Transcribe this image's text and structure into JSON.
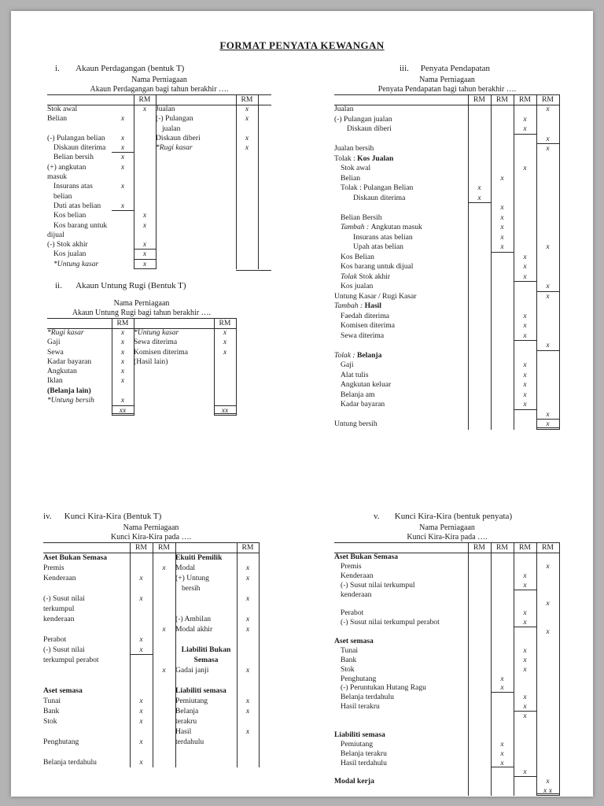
{
  "title": "FORMAT PENYATA KEWANGAN",
  "theme": {
    "backdrop": "#b3b3b3",
    "paper": "#ffffff",
    "ink": "#1c1c1c",
    "rule": "#2a2a2a"
  },
  "sections": {
    "s1": {
      "num": "i.",
      "heading": "Akaun Perdagangan (bentuk T)",
      "name": "Nama Perniagaan",
      "subtitle": "Akaun Perdagangan bagi tahun berakhir ….",
      "rm": "RM",
      "left": {
        "rows": [
          {
            "l": "Stok awal",
            "c": [
              "",
              "x"
            ]
          },
          {
            "l": "Belian",
            "c": [
              "x",
              ""
            ]
          },
          {
            "l": ""
          },
          {
            "l": "(-) Pulangan belian",
            "c": [
              "x",
              ""
            ]
          },
          {
            "l": "Diskaun diterima",
            "in": 1,
            "c": [
              "x",
              ""
            ],
            "u": [
              0
            ]
          },
          {
            "l": "Belian bersih",
            "in": 1,
            "c": [
              "x",
              ""
            ]
          },
          {
            "l": "(+) angkutan",
            "c": [
              "x",
              ""
            ]
          },
          {
            "l": "masuk"
          },
          {
            "l": "Insurans atas",
            "in": 1,
            "c": [
              "x",
              ""
            ]
          },
          {
            "l": "belian",
            "in": 1
          },
          {
            "l": "Duti atas belian",
            "in": 1,
            "c": [
              "x",
              ""
            ],
            "u": [
              0
            ]
          },
          {
            "l": "Kos belian",
            "in": 1,
            "c": [
              "",
              "x"
            ]
          },
          {
            "l": "Kos barang untuk",
            "in": 1,
            "c": [
              "",
              "x"
            ]
          },
          {
            "l": "dijual"
          },
          {
            "l": "(-) Stok akhir",
            "c": [
              "",
              "x"
            ],
            "u": [
              1
            ]
          },
          {
            "l": "Kos jualan",
            "in": 1,
            "c": [
              "",
              "x"
            ],
            "u": [
              1
            ]
          },
          {
            "l": "*Untung kasar",
            "in": 1,
            "i": 1,
            "c": [
              "",
              "x"
            ],
            "u": [
              1
            ]
          }
        ]
      },
      "right": {
        "rows": [
          {
            "l": "Jualan",
            "c": [
              "x"
            ]
          },
          {
            "l": "(-) Pulangan",
            "c": [
              "x"
            ]
          },
          {
            "l": "jualan",
            "in": 1
          },
          {
            "l": "Diskaun diberi",
            "c": [
              "x"
            ]
          },
          {
            "l": "*Rugi kasar",
            "i": 1,
            "c": [
              "x"
            ]
          }
        ]
      }
    },
    "s2": {
      "num": "ii.",
      "heading": "Akaun Untung Rugi (Bentuk T)",
      "name": "Nama Perniagaan",
      "subtitle": "Akaun Untung Rugi bagi tahun berakhir ….",
      "rm": "RM",
      "left": {
        "rows": [
          {
            "l": "*Rugi kasar",
            "i": 1,
            "c": [
              "x"
            ]
          },
          {
            "l": "Gaji",
            "c": [
              "x"
            ]
          },
          {
            "l": "Sewa",
            "c": [
              "x"
            ]
          },
          {
            "l": "Kadar bayaran",
            "c": [
              "x"
            ]
          },
          {
            "l": "Angkutan",
            "c": [
              "x"
            ]
          },
          {
            "l": "Iklan",
            "c": [
              "x"
            ]
          },
          {
            "l": "(Belanja lain)",
            "b": 1
          },
          {
            "l": "*Untung bersih",
            "i": 1,
            "c": [
              "x"
            ]
          },
          {
            "l": "",
            "c": [
              "xx"
            ],
            "tb": [
              0
            ],
            "du": [
              0
            ]
          }
        ]
      },
      "right": {
        "rows": [
          {
            "l": "*Untung kasar",
            "i": 1,
            "c": [
              "x"
            ]
          },
          {
            "l": "Sewa diterima",
            "c": [
              "x"
            ]
          },
          {
            "l": "Komisen diterima",
            "c": [
              "x"
            ]
          },
          {
            "l": "(Hasil lain)"
          },
          {
            "l": ""
          },
          {
            "l": ""
          },
          {
            "l": ""
          },
          {
            "l": ""
          },
          {
            "l": "",
            "c": [
              "xx"
            ],
            "tb": [
              0
            ],
            "du": [
              0
            ]
          }
        ]
      }
    },
    "s3": {
      "num": "iii.",
      "heading": "Penyata Pendapatan",
      "name": "Nama Perniagaan",
      "subtitle": "Penyata Pendapatan bagi tahun berakhir ….",
      "rm": "RM",
      "rows": [
        {
          "l": "Jualan",
          "c": [
            "",
            "",
            "",
            "x"
          ]
        },
        {
          "l": "(-) Pulangan jualan",
          "c": [
            "",
            "",
            "x",
            ""
          ]
        },
        {
          "l": "Diskaun diberi",
          "in": 2,
          "c": [
            "",
            "",
            "x",
            ""
          ],
          "u": [
            2
          ]
        },
        {
          "l": "",
          "c": [
            "",
            "",
            "",
            "x"
          ],
          "u": [
            3
          ]
        },
        {
          "l": "Jualan bersih",
          "c": [
            "",
            "",
            "",
            "x"
          ]
        },
        {
          "l": [
            [
              "Tolak : ",
              ""
            ],
            [
              "Kos Jualan",
              "b"
            ]
          ]
        },
        {
          "l": "Stok awal",
          "in": 1,
          "c": [
            "",
            "",
            "x",
            ""
          ]
        },
        {
          "l": "Belian",
          "in": 1,
          "c": [
            "",
            "x",
            "",
            ""
          ]
        },
        {
          "l": "Tolak : Pulangan Belian",
          "in": 1,
          "c": [
            "x",
            "",
            "",
            ""
          ]
        },
        {
          "l": "Diskaun diterima",
          "in": 3,
          "c": [
            "x",
            "",
            "",
            ""
          ],
          "u": [
            0
          ]
        },
        {
          "l": "",
          "c": [
            "",
            "x",
            "",
            ""
          ]
        },
        {
          "l": "Belian Bersih",
          "in": 1,
          "c": [
            "",
            "x",
            "",
            ""
          ]
        },
        {
          "l": [
            [
              "Tambah : ",
              "i"
            ],
            [
              "Angkutan masuk",
              ""
            ]
          ],
          "in": 1,
          "c": [
            "",
            "x",
            "",
            ""
          ]
        },
        {
          "l": "Insurans atas belian",
          "in": 3,
          "c": [
            "",
            "x",
            "",
            ""
          ]
        },
        {
          "l": "Upah atas belian",
          "in": 3,
          "c": [
            "",
            "x",
            "",
            "x"
          ],
          "u": [
            1
          ]
        },
        {
          "l": "Kos Belian",
          "in": 1,
          "c": [
            "",
            "",
            "x",
            ""
          ]
        },
        {
          "l": "Kos barang untuk dijual",
          "in": 1,
          "c": [
            "",
            "",
            "x",
            ""
          ]
        },
        {
          "l": [
            [
              "Tolak ",
              "i"
            ],
            [
              "Stok akhir",
              ""
            ]
          ],
          "in": 1,
          "c": [
            "",
            "",
            "x",
            ""
          ],
          "u": [
            2
          ]
        },
        {
          "l": "Kos jualan",
          "in": 1,
          "c": [
            "",
            "",
            "",
            "x"
          ],
          "u": [
            3
          ]
        },
        {
          "l": "Untung Kasar / Rugi Kasar",
          "c": [
            "",
            "",
            "",
            "x"
          ]
        },
        {
          "l": [
            [
              "Tambah : ",
              "i"
            ],
            [
              "Hasil",
              "b"
            ]
          ]
        },
        {
          "l": "Faedah diterima",
          "in": 1,
          "c": [
            "",
            "",
            "x",
            ""
          ]
        },
        {
          "l": "Komisen diterima",
          "in": 1,
          "c": [
            "",
            "",
            "x",
            ""
          ]
        },
        {
          "l": "Sewa diterima",
          "in": 1,
          "c": [
            "",
            "",
            "x",
            ""
          ],
          "u": [
            2
          ]
        },
        {
          "l": "",
          "c": [
            "",
            "",
            "",
            "x"
          ],
          "u": [
            3
          ]
        },
        {
          "l": [
            [
              "Tolak : ",
              "i"
            ],
            [
              "Belanja",
              "b"
            ]
          ]
        },
        {
          "l": "Gaji",
          "in": 1,
          "c": [
            "",
            "",
            "x",
            ""
          ]
        },
        {
          "l": "Alat tulis",
          "in": 1,
          "c": [
            "",
            "",
            "x",
            ""
          ]
        },
        {
          "l": "Angkutan keluar",
          "in": 1,
          "c": [
            "",
            "",
            "x",
            ""
          ]
        },
        {
          "l": "Belanja am",
          "in": 1,
          "c": [
            "",
            "",
            "x",
            ""
          ]
        },
        {
          "l": "Kadar bayaran",
          "in": 1,
          "c": [
            "",
            "",
            "x",
            ""
          ],
          "u": [
            2
          ]
        },
        {
          "l": "",
          "c": [
            "",
            "",
            "",
            "x"
          ],
          "u": [
            3
          ]
        },
        {
          "l": "Untung bersih",
          "c": [
            "",
            "",
            "",
            "x"
          ],
          "du": [
            3
          ]
        }
      ]
    },
    "s4": {
      "num": "iv.",
      "heading": "Kunci Kira-Kira (Bentuk T)",
      "name": "Nama Perniagaan",
      "subtitle": "Kunci Kira-Kira pada ….",
      "rm": "RM",
      "left": {
        "rows": [
          {
            "l": "Aset Bukan Semasa",
            "b": 1
          },
          {
            "l": "Premis",
            "c": [
              "",
              "x"
            ]
          },
          {
            "l": "Kenderaan",
            "c": [
              "x",
              ""
            ]
          },
          {
            "l": ""
          },
          {
            "l": "(-) Susut nilai",
            "c": [
              "x",
              ""
            ]
          },
          {
            "l": "terkumpul"
          },
          {
            "l": "kenderaan"
          },
          {
            "l": "",
            "c": [
              "",
              "x"
            ]
          },
          {
            "l": "Perabot",
            "c": [
              "x",
              ""
            ]
          },
          {
            "l": "(-) Susut nilai",
            "c": [
              "x",
              ""
            ],
            "u": [
              0
            ]
          },
          {
            "l": "terkumpul perabot"
          },
          {
            "l": "",
            "c": [
              "",
              "x"
            ]
          },
          {
            "l": ""
          },
          {
            "l": "Aset semasa",
            "b": 1
          },
          {
            "l": "Tunai",
            "c": [
              "x",
              ""
            ]
          },
          {
            "l": "Bank",
            "c": [
              "x",
              ""
            ]
          },
          {
            "l": "Stok",
            "c": [
              "x",
              ""
            ]
          },
          {
            "l": ""
          },
          {
            "l": "Penghutang",
            "c": [
              "x",
              ""
            ]
          },
          {
            "l": ""
          },
          {
            "l": "Belanja terdahulu",
            "c": [
              "x",
              ""
            ]
          }
        ]
      },
      "right": {
        "rows": [
          {
            "l": "Ekuiti Pemilik",
            "b": 1
          },
          {
            "l": "Modal",
            "c": [
              "x"
            ]
          },
          {
            "l": "(+) Untung",
            "c": [
              "x"
            ]
          },
          {
            "l": "bersih",
            "in": 1
          },
          {
            "l": "",
            "c": [
              "x"
            ]
          },
          {
            "l": ""
          },
          {
            "l": "(-) Ambilan",
            "c": [
              "x"
            ]
          },
          {
            "l": "Modal akhir",
            "c": [
              "x"
            ]
          },
          {
            "l": ""
          },
          {
            "l": "Liabiliti Bukan",
            "b": 1,
            "ctr": 1
          },
          {
            "l": "Semasa",
            "b": 1,
            "ctr": 1
          },
          {
            "l": "Gadai janji",
            "c": [
              "x"
            ]
          },
          {
            "l": ""
          },
          {
            "l": "Liabiliti semasa",
            "b": 1
          },
          {
            "l": "Pemiutang",
            "c": [
              "x"
            ]
          },
          {
            "l": "Belanja",
            "c": [
              "x"
            ]
          },
          {
            "l": "terakru"
          },
          {
            "l": "Hasil",
            "c": [
              "x"
            ]
          },
          {
            "l": "terdahulu"
          }
        ]
      }
    },
    "s5": {
      "num": "v.",
      "heading": "Kunci Kira-Kira (bentuk penyata)",
      "name": "Nama Perniagaan",
      "subtitle": "Kunci Kira-Kira pada ….",
      "rm": "RM",
      "rows": [
        {
          "l": "Aset Bukan Semasa",
          "b": 1
        },
        {
          "l": "Premis",
          "in": 1,
          "c": [
            "",
            "",
            "",
            "x"
          ]
        },
        {
          "l": "Kenderaan",
          "in": 1,
          "c": [
            "",
            "",
            "x",
            ""
          ]
        },
        {
          "l": "(-) Susut nilai terkumpul",
          "in": 1,
          "c": [
            "",
            "",
            "x",
            ""
          ],
          "u": [
            2
          ]
        },
        {
          "l": "kenderaan",
          "in": 1
        },
        {
          "l": "",
          "c": [
            "",
            "",
            "",
            "x"
          ]
        },
        {
          "l": "Perabot",
          "in": 1,
          "c": [
            "",
            "",
            "x",
            ""
          ]
        },
        {
          "l": "(-) Susut nilai terkumpul perabot",
          "in": 1,
          "c": [
            "",
            "",
            "x",
            ""
          ],
          "u": [
            2
          ]
        },
        {
          "l": "",
          "c": [
            "",
            "",
            "",
            "x"
          ]
        },
        {
          "l": "Aset semasa",
          "b": 1
        },
        {
          "l": "Tunai",
          "in": 1,
          "c": [
            "",
            "",
            "x",
            ""
          ]
        },
        {
          "l": "Bank",
          "in": 1,
          "c": [
            "",
            "",
            "x",
            ""
          ]
        },
        {
          "l": "Stok",
          "in": 1,
          "c": [
            "",
            "",
            "x",
            ""
          ]
        },
        {
          "l": "Penghutang",
          "in": 1,
          "c": [
            "",
            "x",
            "",
            ""
          ]
        },
        {
          "l": "(-) Peruntukan Hutang Ragu",
          "in": 1,
          "c": [
            "",
            "x",
            "",
            ""
          ],
          "u": [
            1
          ]
        },
        {
          "l": "Belanja terdahulu",
          "in": 1,
          "c": [
            "",
            "",
            "x",
            ""
          ]
        },
        {
          "l": "Hasil terakru",
          "in": 1,
          "c": [
            "",
            "",
            "x",
            ""
          ],
          "u": [
            2
          ]
        },
        {
          "l": "",
          "c": [
            "",
            "",
            "x",
            ""
          ]
        },
        {
          "l": ""
        },
        {
          "l": "Liabiliti semasa",
          "b": 1
        },
        {
          "l": "Pemiutang",
          "in": 1,
          "c": [
            "",
            "x",
            "",
            ""
          ]
        },
        {
          "l": "Belanja terakru",
          "in": 1,
          "c": [
            "",
            "x",
            "",
            ""
          ]
        },
        {
          "l": "Hasil terdahulu",
          "in": 1,
          "c": [
            "",
            "x",
            "",
            ""
          ],
          "u": [
            1
          ]
        },
        {
          "l": "",
          "c": [
            "",
            "",
            "x",
            ""
          ],
          "u": [
            2
          ]
        },
        {
          "l": "Modal kerja",
          "b": 1,
          "c": [
            "",
            "",
            "",
            "x"
          ]
        },
        {
          "l": "",
          "c": [
            "",
            "",
            "",
            "x x"
          ],
          "du": [
            3
          ]
        }
      ]
    }
  }
}
